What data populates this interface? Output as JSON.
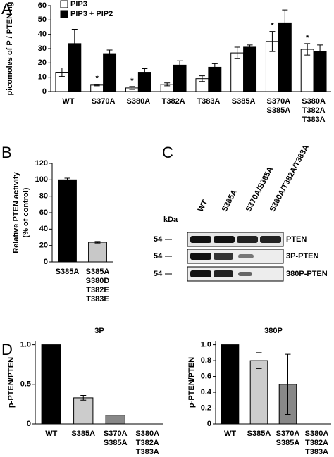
{
  "panel_labels": [
    "A",
    "B",
    "C",
    "D"
  ],
  "chart_data": [
    {
      "type": "bar",
      "ylabel": "picomoles of P / PTEN ng",
      "categories": [
        [
          "WT"
        ],
        [
          "S370A"
        ],
        [
          "S380A"
        ],
        [
          "T382A"
        ],
        [
          "T383A"
        ],
        [
          "S385A"
        ],
        [
          "S370A",
          "S385A"
        ],
        [
          "S380A",
          "T382A",
          "T383A"
        ]
      ],
      "series": [
        {
          "name": "PIP3",
          "color": "#ffffff",
          "values": [
            13.5,
            4.5,
            2.5,
            5,
            9,
            27,
            35,
            29.5
          ],
          "errors": [
            3,
            0.5,
            1,
            1,
            2,
            4,
            7,
            4
          ]
        },
        {
          "name": "PIP3 + PIP2",
          "color": "#000000",
          "values": [
            33.5,
            26.5,
            13.5,
            18.5,
            17,
            31,
            48,
            28
          ],
          "errors": [
            10,
            2.5,
            2.5,
            3,
            2.5,
            1.5,
            9,
            4.5
          ]
        }
      ],
      "significance": [
        null,
        "*",
        "*",
        null,
        null,
        null,
        "*",
        "*"
      ],
      "ylim": [
        0,
        60
      ],
      "yticks": [
        0,
        10,
        20,
        30,
        40,
        50,
        60
      ],
      "legend": "upper left"
    },
    {
      "type": "bar",
      "ylabel": [
        "Relative PTEN activity",
        "(% of control)"
      ],
      "categories": [
        [
          "S385A"
        ],
        [
          "S385A",
          "S380D",
          "T382E",
          "T383E"
        ]
      ],
      "series": [
        {
          "colors": [
            "#000000",
            "#c8c8c8"
          ],
          "values": [
            100,
            24
          ],
          "errors": [
            2,
            1
          ]
        }
      ],
      "ylim": [
        0,
        120
      ],
      "yticks": [
        0,
        20,
        40,
        60,
        80,
        100,
        120
      ]
    },
    {
      "type": "bar",
      "title": "3P",
      "ylabel": "p-PTEN/PTEN",
      "categories": [
        [
          "WT"
        ],
        [
          "S385A"
        ],
        [
          "S370A",
          "S385A"
        ],
        [
          "S380A",
          "T382A",
          "T383A"
        ]
      ],
      "series": [
        {
          "colors": [
            "#000000",
            "#cccccc",
            "#888888",
            "#888888"
          ],
          "values": [
            1,
            0.33,
            0.11,
            0
          ],
          "errors": [
            null,
            0.03,
            null,
            null
          ]
        }
      ],
      "ylim": [
        0,
        1.05
      ],
      "yticks": [
        0,
        0.5,
        {
          "value": 1,
          "label": "1.0"
        }
      ]
    },
    {
      "type": "bar",
      "title": "380P",
      "ylabel": "p-PTEN/PTEN",
      "categories": [
        [
          "WT"
        ],
        [
          "S385A"
        ],
        [
          "S370A",
          "S385A"
        ],
        [
          "S380A",
          "T382A",
          "T383A"
        ]
      ],
      "series": [
        {
          "colors": [
            "#000000",
            "#cccccc",
            "#888888",
            "#888888"
          ],
          "values": [
            1,
            0.8,
            0.5,
            0
          ],
          "errors": [
            null,
            0.1,
            0.38,
            null
          ]
        }
      ],
      "ylim": [
        0,
        1.05
      ],
      "yticks": [
        0,
        0.2,
        0.4,
        0.6,
        0.8,
        {
          "value": 1,
          "label": "1.0"
        }
      ]
    }
  ],
  "blot": {
    "unit": "kDa",
    "lanes": [
      "WT",
      "S385A",
      "S370A/S385A",
      "S380A/T382A/T383A"
    ],
    "rows": [
      {
        "kda": "54",
        "label": "PTEN"
      },
      {
        "kda": "54",
        "label": "3P-PTEN"
      },
      {
        "kda": "54",
        "label": "380P-PTEN"
      }
    ]
  }
}
